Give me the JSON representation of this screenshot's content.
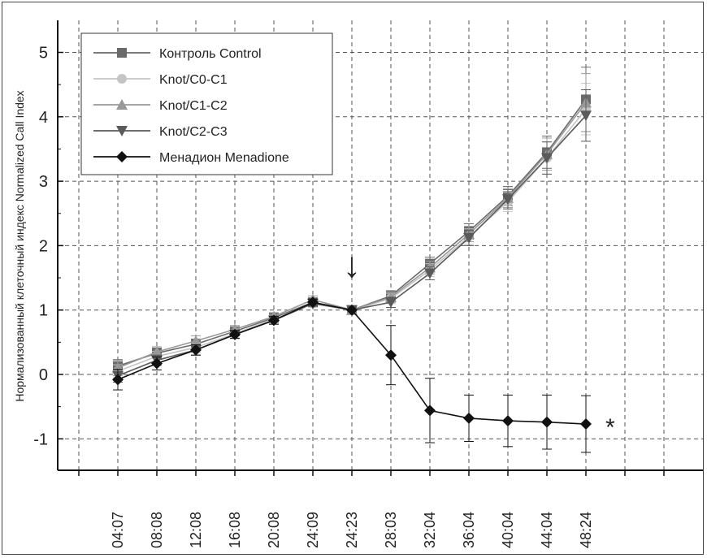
{
  "chart_data": {
    "type": "line",
    "title": "",
    "xlabel": "",
    "ylabel": "Нормализованный клеточный индекс Normalized Call Index",
    "ylim": [
      -1.5,
      5.5
    ],
    "yticks": [
      -1,
      0,
      1,
      2,
      3,
      4,
      5
    ],
    "categories": [
      "04:07",
      "08:08",
      "12:08",
      "16:08",
      "20:08",
      "24:09",
      "24:23",
      "28:03",
      "32:04",
      "36:04",
      "40:04",
      "44:04",
      "48:24"
    ],
    "grid": true,
    "legend_position": "top-left",
    "event_marker": {
      "category": "24:23",
      "symbol": "↓"
    },
    "significance_marker": {
      "series": "Менадион Menadione",
      "symbol": "*"
    },
    "series": [
      {
        "name": "Контроль Control",
        "marker": "square",
        "color": "#6a6a6a",
        "values": [
          0.13,
          0.33,
          0.47,
          0.67,
          0.88,
          1.12,
          1.0,
          1.22,
          1.72,
          2.22,
          2.77,
          3.45,
          4.27
        ],
        "errors": [
          0.1,
          0.08,
          0.08,
          0.06,
          0.06,
          0.05,
          0.0,
          0.08,
          0.1,
          0.12,
          0.15,
          0.25,
          0.5
        ]
      },
      {
        "name": "Knot/C0-C1",
        "marker": "circle",
        "color": "#c4c4c4",
        "values": [
          0.05,
          0.28,
          0.42,
          0.63,
          0.86,
          1.1,
          1.0,
          1.18,
          1.62,
          2.14,
          2.68,
          3.36,
          4.12
        ],
        "errors": [
          0.1,
          0.08,
          0.08,
          0.06,
          0.06,
          0.05,
          0.0,
          0.08,
          0.1,
          0.12,
          0.15,
          0.25,
          0.4
        ]
      },
      {
        "name": "Knot/C1-C2",
        "marker": "triangle-up",
        "color": "#999999",
        "values": [
          0.1,
          0.35,
          0.52,
          0.7,
          0.9,
          1.16,
          1.0,
          1.2,
          1.66,
          2.18,
          2.74,
          3.42,
          4.22
        ],
        "errors": [
          0.12,
          0.08,
          0.08,
          0.06,
          0.06,
          0.06,
          0.0,
          0.08,
          0.1,
          0.12,
          0.15,
          0.25,
          0.45
        ]
      },
      {
        "name": "Knot/C2-C3",
        "marker": "triangle-down",
        "color": "#5a5a5a",
        "values": [
          -0.02,
          0.22,
          0.38,
          0.62,
          0.84,
          1.1,
          1.0,
          1.12,
          1.57,
          2.12,
          2.72,
          3.36,
          4.02
        ],
        "errors": [
          0.1,
          0.08,
          0.08,
          0.06,
          0.06,
          0.05,
          0.0,
          0.08,
          0.1,
          0.12,
          0.15,
          0.25,
          0.4
        ]
      },
      {
        "name": "Менадион Menadione",
        "marker": "diamond",
        "color": "#111111",
        "values": [
          -0.08,
          0.17,
          0.38,
          0.62,
          0.84,
          1.12,
          1.0,
          0.3,
          -0.56,
          -0.68,
          -0.72,
          -0.74,
          -0.77
        ],
        "errors": [
          0.16,
          0.1,
          0.08,
          0.06,
          0.06,
          0.05,
          0.0,
          0.46,
          0.5,
          0.36,
          0.4,
          0.42,
          0.44
        ]
      }
    ]
  }
}
